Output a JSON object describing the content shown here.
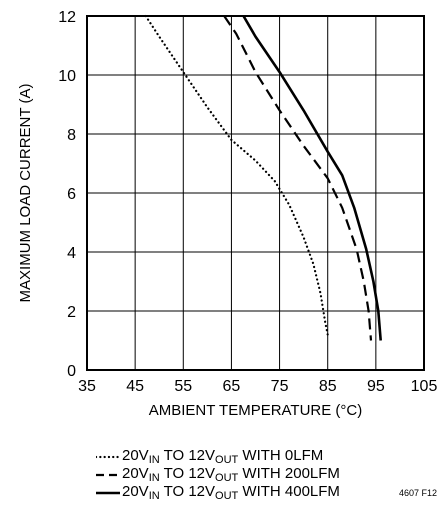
{
  "chart_data": {
    "type": "line",
    "xlabel": "AMBIENT TEMPERATURE (°C)",
    "ylabel": "MAXIMUM LOAD CURRENT (A)",
    "xlim": [
      35,
      105
    ],
    "ylim": [
      0,
      12
    ],
    "xticks": [
      "35",
      "45",
      "55",
      "65",
      "75",
      "85",
      "95",
      "105"
    ],
    "yticks": [
      "0",
      "2",
      "4",
      "6",
      "8",
      "10",
      "12"
    ],
    "grid": true,
    "legend_position": "bottom",
    "series": [
      {
        "name": "20VIN TO 12VOUT WITH 0LFM",
        "style": "dotted",
        "points": [
          [
            47.2,
            12
          ],
          [
            50,
            11.3
          ],
          [
            55,
            10.1
          ],
          [
            60,
            8.9
          ],
          [
            65,
            7.8
          ],
          [
            70,
            7.1
          ],
          [
            74,
            6.4
          ],
          [
            77,
            5.6
          ],
          [
            80,
            4.5
          ],
          [
            82,
            3.6
          ],
          [
            83.5,
            2.6
          ],
          [
            84.5,
            1.6
          ],
          [
            85,
            1.2
          ]
        ]
      },
      {
        "name": "20VIN TO 12VOUT WITH 200LFM",
        "style": "dashed",
        "points": [
          [
            63.5,
            12
          ],
          [
            66,
            11.4
          ],
          [
            70,
            10.1
          ],
          [
            75,
            8.8
          ],
          [
            80,
            7.6
          ],
          [
            85,
            6.5
          ],
          [
            88,
            5.5
          ],
          [
            91,
            4.1
          ],
          [
            92.5,
            3.0
          ],
          [
            93.5,
            2.0
          ],
          [
            94,
            1.0
          ]
        ]
      },
      {
        "name": "20VIN TO 12VOUT WITH 400LFM",
        "style": "solid",
        "points": [
          [
            67.5,
            12
          ],
          [
            70,
            11.3
          ],
          [
            75,
            10.1
          ],
          [
            80,
            8.8
          ],
          [
            85,
            7.4
          ],
          [
            88,
            6.6
          ],
          [
            90.5,
            5.5
          ],
          [
            93,
            4.1
          ],
          [
            94.5,
            3.0
          ],
          [
            95.5,
            2.0
          ],
          [
            96,
            1.0
          ]
        ]
      }
    ]
  },
  "legend": [
    {
      "pre": "20V",
      "sub1": "IN",
      "mid": " TO 12V",
      "sub2": "OUT",
      "post": " WITH 0LFM"
    },
    {
      "pre": "20V",
      "sub1": "IN",
      "mid": " TO 12V",
      "sub2": "OUT",
      "post": " WITH 200LFM"
    },
    {
      "pre": "20V",
      "sub1": "IN",
      "mid": " TO 12V",
      "sub2": "OUT",
      "post": " WITH 400LFM"
    }
  ],
  "figure_id": "4607 F12"
}
